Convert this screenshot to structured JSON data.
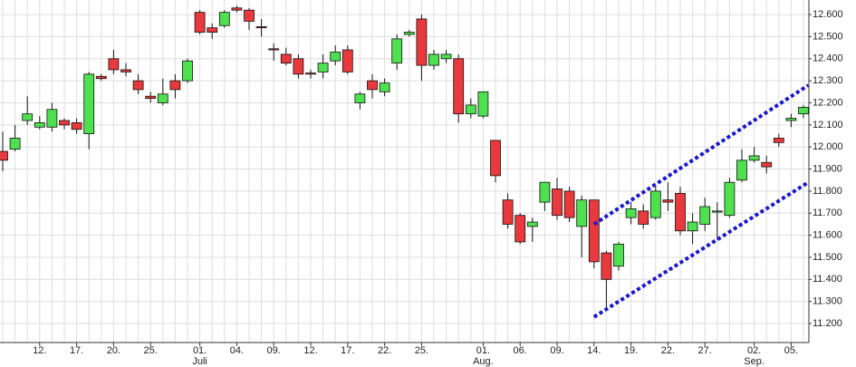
{
  "chart_data": {
    "type": "candlestick",
    "categories": [
      null,
      null,
      null,
      "12.",
      null,
      null,
      "17.",
      null,
      null,
      "20.",
      null,
      null,
      "25.",
      null,
      null,
      null,
      "01.",
      null,
      null,
      "04.",
      null,
      null,
      "09.",
      null,
      null,
      "12.",
      null,
      null,
      "17.",
      null,
      null,
      "22.",
      null,
      null,
      "25.",
      null,
      null,
      null,
      null,
      "01.",
      null,
      null,
      "06.",
      null,
      null,
      "09.",
      null,
      null,
      "14.",
      null,
      null,
      "19.",
      null,
      null,
      "22.",
      null,
      null,
      "27.",
      null,
      null,
      null,
      "02.",
      null,
      null,
      "05.",
      null
    ],
    "months": [
      null,
      null,
      null,
      null,
      null,
      null,
      null,
      null,
      null,
      null,
      null,
      null,
      null,
      null,
      null,
      null,
      "Juli",
      null,
      null,
      null,
      null,
      null,
      null,
      null,
      null,
      null,
      null,
      null,
      null,
      null,
      null,
      null,
      null,
      null,
      null,
      null,
      null,
      null,
      null,
      "Aug.",
      null,
      null,
      null,
      null,
      null,
      null,
      null,
      null,
      null,
      null,
      null,
      null,
      null,
      null,
      null,
      null,
      null,
      null,
      null,
      null,
      null,
      "Sep.",
      null,
      null,
      null,
      null
    ],
    "open": [
      11.98,
      11.99,
      12.12,
      12.09,
      12.09,
      12.12,
      12.11,
      12.06,
      12.32,
      12.4,
      12.35,
      12.3,
      12.23,
      12.2,
      12.3,
      12.3,
      12.61,
      12.54,
      12.55,
      12.63,
      12.62,
      12.545,
      12.445,
      12.42,
      12.4,
      12.335,
      12.34,
      12.39,
      12.44,
      12.2,
      12.3,
      12.25,
      12.38,
      12.51,
      12.58,
      12.37,
      12.4,
      12.4,
      12.15,
      12.14,
      12.03,
      11.76,
      11.69,
      11.64,
      11.75,
      11.81,
      11.8,
      11.64,
      11.76,
      11.52,
      11.46,
      11.68,
      11.71,
      11.68,
      11.76,
      11.79,
      11.62,
      11.65,
      11.705,
      11.69,
      11.85,
      11.94,
      11.93,
      12.04,
      12.12,
      12.15
    ],
    "high": [
      12.07,
      12.1,
      12.23,
      12.14,
      12.2,
      12.13,
      12.13,
      12.34,
      12.33,
      12.44,
      12.38,
      12.33,
      12.25,
      12.31,
      12.33,
      12.4,
      12.62,
      12.56,
      12.62,
      12.64,
      12.63,
      12.58,
      12.47,
      12.45,
      12.42,
      12.35,
      12.42,
      12.46,
      12.46,
      12.25,
      12.33,
      12.31,
      12.51,
      12.53,
      12.6,
      12.44,
      12.44,
      12.42,
      12.22,
      12.25,
      12.03,
      11.79,
      11.7,
      11.68,
      11.84,
      11.86,
      11.82,
      11.78,
      11.76,
      11.53,
      11.57,
      11.75,
      11.74,
      11.82,
      11.84,
      11.82,
      11.7,
      11.77,
      11.75,
      11.86,
      11.99,
      12.0,
      11.96,
      12.06,
      12.15,
      12.19
    ],
    "low": [
      11.89,
      11.98,
      12.1,
      12.08,
      12.07,
      12.08,
      12.06,
      11.99,
      12.3,
      12.33,
      12.32,
      12.24,
      12.2,
      12.19,
      12.22,
      12.29,
      12.51,
      12.49,
      12.54,
      12.61,
      12.53,
      12.5,
      12.39,
      12.37,
      12.31,
      12.31,
      12.31,
      12.37,
      12.33,
      12.17,
      12.22,
      12.23,
      12.35,
      12.5,
      12.3,
      12.35,
      12.38,
      12.11,
      12.13,
      12.13,
      11.84,
      11.63,
      11.56,
      11.57,
      11.71,
      11.67,
      11.66,
      11.5,
      11.45,
      11.27,
      11.44,
      11.65,
      11.63,
      11.67,
      11.71,
      11.6,
      11.56,
      11.62,
      11.58,
      11.68,
      11.84,
      11.93,
      11.88,
      12.0,
      12.09,
      12.13
    ],
    "close": [
      11.94,
      12.04,
      12.15,
      12.11,
      12.17,
      12.1,
      12.08,
      12.33,
      12.31,
      12.35,
      12.34,
      12.26,
      12.22,
      12.24,
      12.26,
      12.39,
      12.52,
      12.52,
      12.61,
      12.62,
      12.57,
      12.54,
      12.44,
      12.38,
      12.33,
      12.33,
      12.38,
      12.43,
      12.34,
      12.24,
      12.26,
      12.29,
      12.49,
      12.52,
      12.37,
      12.42,
      12.42,
      12.15,
      12.19,
      12.25,
      11.87,
      11.65,
      11.57,
      11.66,
      11.84,
      11.69,
      11.68,
      11.76,
      11.48,
      11.4,
      11.56,
      11.72,
      11.65,
      11.8,
      11.75,
      11.62,
      11.66,
      11.73,
      11.71,
      11.84,
      11.94,
      11.96,
      11.91,
      12.02,
      12.13,
      12.18
    ],
    "up_color": "#4fe04f",
    "down_color": "#e8393c",
    "trendlines": [
      {
        "x": [
          48,
          65.4
        ],
        "y": [
          11.65,
          12.28
        ],
        "color": "#1a1acc"
      },
      {
        "x": [
          48,
          65.4
        ],
        "y": [
          11.23,
          11.84
        ],
        "color": "#1a1acc"
      }
    ],
    "ylim": [
      11.114,
      12.666
    ],
    "yticks": [
      {
        "value": 11.2,
        "label": "11.200"
      },
      {
        "value": 11.3,
        "label": "11.300"
      },
      {
        "value": 11.4,
        "label": "11.400"
      },
      {
        "value": 11.5,
        "label": "11.500"
      },
      {
        "value": 11.6,
        "label": "11.600"
      },
      {
        "value": 11.7,
        "label": "11.700"
      },
      {
        "value": 11.8,
        "label": "11.800"
      },
      {
        "value": 11.9,
        "label": "11.900"
      },
      {
        "value": 12.0,
        "label": "12.000"
      },
      {
        "value": 12.1,
        "label": "12.100"
      },
      {
        "value": 12.2,
        "label": "12.200"
      },
      {
        "value": 12.3,
        "label": "12.300"
      },
      {
        "value": 12.4,
        "label": "12.400"
      },
      {
        "value": 12.5,
        "label": "12.500"
      },
      {
        "value": 12.6,
        "label": "12.600"
      }
    ],
    "grid": true
  }
}
